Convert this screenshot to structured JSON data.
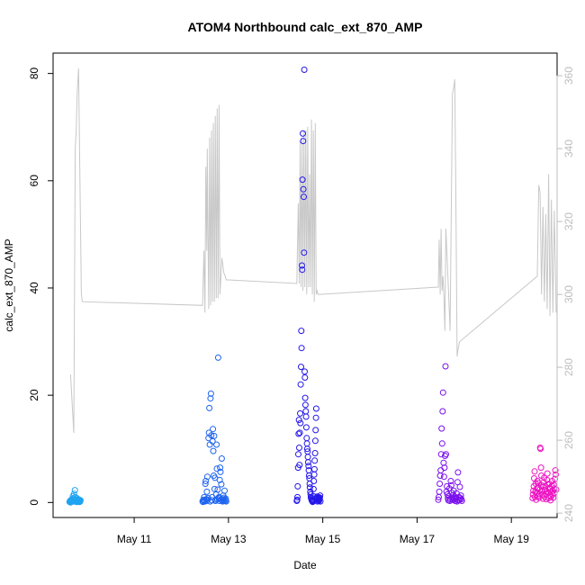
{
  "chart_data": {
    "type": "scatter",
    "title": "ATOM4 Northbound calc_ext_870_AMP",
    "xlabel": "Date",
    "ylabel": "calc_ext_870_AMP",
    "x_ticks": [
      "May 11",
      "May 13",
      "May 15",
      "May 17",
      "May 19"
    ],
    "y_ticks": [
      0,
      20,
      40,
      60,
      80
    ],
    "y2_ticks": [
      240,
      260,
      280,
      300,
      320,
      340,
      360
    ],
    "x_range_days": [
      9.28,
      19.97
    ],
    "ylim": [
      -2.8,
      83.8
    ],
    "y2lim": [
      238.8,
      366.2
    ],
    "grid": false,
    "colors": {
      "axis": "#000000",
      "secondary_axis": "#bdbdbd",
      "secondary_line": "#c8c8c8"
    },
    "scatter_groups": [
      {
        "color": "#1fa4f0",
        "x_range": [
          9.63,
          9.86
        ],
        "values": [
          0.1,
          0.2,
          0.3,
          0.0,
          0.4,
          0.2,
          0.5,
          0.1,
          0.3,
          0.6,
          0.2,
          0.4,
          1.2,
          0.8,
          0.5,
          0.3,
          1.6,
          0.2,
          0.4,
          2.3,
          1.0,
          0.3,
          0.6,
          0.2,
          0.1,
          0.5,
          0.8,
          0.4,
          0.3,
          0.2,
          0.1,
          0.6,
          0.4,
          0.3,
          0.2,
          0.5,
          0.1,
          0.3,
          0.2,
          0.4
        ]
      },
      {
        "color": "#1e64f0",
        "x_range": [
          12.45,
          12.95
        ],
        "values": [
          0.2,
          0.1,
          0.5,
          0.3,
          1.0,
          0.4,
          0.2,
          3.5,
          4.0,
          0.6,
          0.3,
          2.0,
          4.8,
          0.5,
          0.8,
          12.0,
          13.0,
          17.6,
          10.8,
          0.2,
          19.4,
          20.3,
          12.5,
          0.4,
          1.0,
          11.4,
          13.7,
          9.6,
          5.0,
          12.4,
          2.5,
          4.6,
          0.3,
          0.5,
          1.5,
          10.8,
          6.3,
          0.6,
          2.4,
          27.0,
          0.8,
          1.0,
          0.3,
          4.2,
          6.5,
          5.7,
          0.5,
          3.4,
          8.2,
          0.4,
          0.2,
          0.6,
          1.3,
          0.3,
          0.9,
          2.2,
          0.5,
          0.3,
          0.7,
          0.2
        ]
      },
      {
        "color": "#2416ea",
        "x_range": [
          14.45,
          14.95
        ],
        "values": [
          0.3,
          0.5,
          1.0,
          3.0,
          6.5,
          9.0,
          12.8,
          15.4,
          10.2,
          7.0,
          13.0,
          16.6,
          14.8,
          22.0,
          25.3,
          32.0,
          28.8,
          44.2,
          43.4,
          60.2,
          68.8,
          67.4,
          58.4,
          57.0,
          46.6,
          80.7,
          24.4,
          23.3,
          19.5,
          18.2,
          17.0,
          16.0,
          14.0,
          12.0,
          11.0,
          10.0,
          9.5,
          8.5,
          7.5,
          6.8,
          6.0,
          5.0,
          4.5,
          3.5,
          2.8,
          2.0,
          1.5,
          1.0,
          0.8,
          0.6,
          0.4,
          0.3,
          0.2,
          0.1,
          0.5,
          1.2,
          2.5,
          4.0,
          5.2,
          6.2,
          7.8,
          9.2,
          11.5,
          13.5,
          15.8,
          17.5,
          0.7,
          0.9,
          1.1,
          0.2,
          0.4,
          0.6,
          0.8,
          1.0,
          0.3,
          0.5,
          0.7,
          0.9,
          1.3,
          0.2
        ]
      },
      {
        "color": "#7a10ee",
        "x_range": [
          17.45,
          17.95
        ],
        "values": [
          0.5,
          1.0,
          2.0,
          3.5,
          5.0,
          6.0,
          9.0,
          13.8,
          11.0,
          17.0,
          20.5,
          7.4,
          4.8,
          6.5,
          8.7,
          25.4,
          9.0,
          2.0,
          3.0,
          1.5,
          0.8,
          0.4,
          1.2,
          2.6,
          0.3,
          0.6,
          4.0,
          3.2,
          1.8,
          0.9,
          0.5,
          1.4,
          2.2,
          0.7,
          1.1,
          0.3,
          0.6,
          0.9,
          1.7,
          0.2,
          3.8,
          5.6,
          0.4,
          1.0,
          0.5,
          2.9,
          0.8,
          1.3,
          0.6,
          0.3
        ]
      },
      {
        "color": "#ee12c2",
        "x_range": [
          19.45,
          19.95
        ],
        "values": [
          0.8,
          1.5,
          2.2,
          3.0,
          4.5,
          5.8,
          1.0,
          2.0,
          3.5,
          0.5,
          1.8,
          2.6,
          4.0,
          1.2,
          2.8,
          3.6,
          0.9,
          1.6,
          2.4,
          10.2,
          10.0,
          6.5,
          5.0,
          3.2,
          2.0,
          1.4,
          0.7,
          2.9,
          3.8,
          4.6,
          1.1,
          2.3,
          3.0,
          1.7,
          0.6,
          2.1,
          4.2,
          5.4,
          3.4,
          1.9,
          0.8,
          2.7,
          3.5,
          1.3,
          2.5,
          0.4,
          1.0,
          2.0,
          3.1,
          4.0,
          1.5,
          2.2,
          0.9,
          3.3,
          2.6,
          1.8,
          4.4,
          6.0,
          5.2,
          2.4
        ]
      }
    ],
    "secondary_series": {
      "color": "#c8c8c8",
      "x": [
        9.65,
        9.72,
        9.75,
        9.77,
        9.79,
        9.82,
        9.86,
        9.88,
        9.9,
        12.45,
        12.48,
        12.5,
        12.52,
        12.54,
        12.55,
        12.58,
        12.6,
        12.62,
        12.64,
        12.66,
        12.68,
        12.7,
        12.72,
        12.74,
        12.76,
        12.78,
        12.8,
        12.82,
        12.84,
        12.86,
        12.88,
        12.9,
        12.93,
        12.95,
        14.45,
        14.48,
        14.5,
        14.52,
        14.54,
        14.56,
        14.58,
        14.6,
        14.62,
        14.64,
        14.66,
        14.68,
        14.7,
        14.72,
        14.74,
        14.76,
        14.78,
        14.8,
        14.82,
        14.84,
        14.86,
        14.88,
        14.9,
        14.93,
        17.45,
        17.47,
        17.49,
        17.51,
        17.53,
        17.55,
        17.57,
        17.59,
        17.61,
        17.65,
        17.7,
        17.75,
        17.78,
        17.8,
        17.82,
        17.85,
        17.87,
        17.9,
        19.55,
        19.58,
        19.61,
        19.64,
        19.67,
        19.7,
        19.73,
        19.76,
        19.79,
        19.82,
        19.85,
        19.88,
        19.91,
        19.95
      ],
      "values": [
        278,
        262,
        340,
        345,
        355,
        362,
        320,
        300,
        298,
        297,
        312,
        295,
        335,
        312,
        340,
        296,
        343,
        297,
        345,
        298,
        347,
        298,
        349,
        299,
        351,
        299,
        352,
        300,
        305,
        310,
        308,
        306,
        305,
        304,
        303,
        325,
        303,
        342,
        302,
        343,
        301,
        345,
        302,
        345,
        300,
        346,
        302,
        333,
        302,
        348,
        300,
        345,
        298,
        347,
        300,
        301,
        300,
        300,
        302,
        315,
        300,
        318,
        301,
        305,
        299,
        290,
        318,
        306,
        290,
        355,
        357,
        359,
        330,
        283,
        285,
        287,
        305,
        330,
        328,
        300,
        324,
        298,
        322,
        296,
        333,
        294,
        326,
        295,
        323,
        295
      ]
    }
  }
}
